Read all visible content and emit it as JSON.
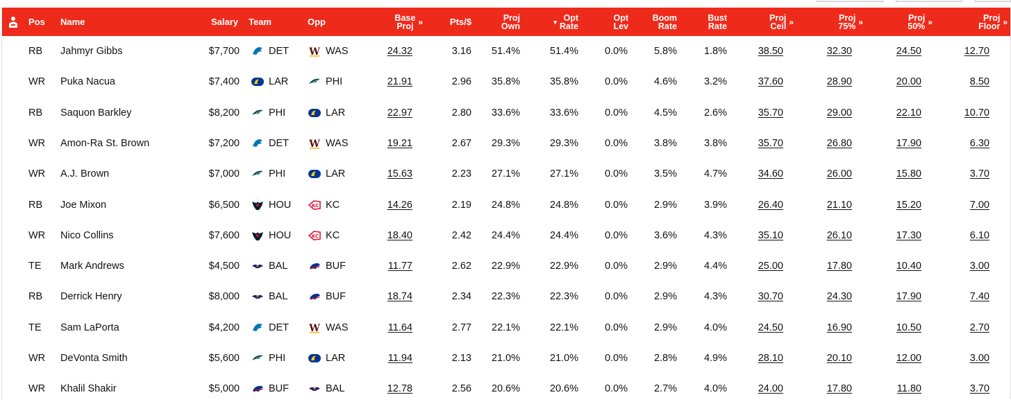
{
  "header": {
    "columns": [
      {
        "key": "pos",
        "label": "Pos"
      },
      {
        "key": "name",
        "label": "Name"
      },
      {
        "key": "salary",
        "label": "Salary"
      },
      {
        "key": "team",
        "label": "Team"
      },
      {
        "key": "opp",
        "label": "Opp"
      },
      {
        "key": "base_proj",
        "label": "Base Proj"
      },
      {
        "key": "pts_per_dollar",
        "label": "Pts/$"
      },
      {
        "key": "proj_own",
        "label": "Proj Own"
      },
      {
        "key": "opt_rate",
        "label": "Opt Rate"
      },
      {
        "key": "opt_lev",
        "label": "Opt Lev"
      },
      {
        "key": "boom_rate",
        "label": "Boom Rate"
      },
      {
        "key": "bust_rate",
        "label": "Bust Rate"
      },
      {
        "key": "proj_ceil",
        "label": "Proj Ceil"
      },
      {
        "key": "proj_75",
        "label": "Proj 75%"
      },
      {
        "key": "proj_50",
        "label": "Proj 50%"
      },
      {
        "key": "proj_floor",
        "label": "Proj Floor"
      }
    ],
    "base_proj_l1": "Base",
    "base_proj_l2": "Proj",
    "proj_own_l1": "Proj",
    "proj_own_l2": "Own",
    "opt_rate_l1": "Opt",
    "opt_rate_l2": "Rate",
    "opt_lev_l1": "Opt",
    "opt_lev_l2": "Lev",
    "boom_l1": "Boom",
    "boom_l2": "Rate",
    "bust_l1": "Bust",
    "bust_l2": "Rate",
    "ceil_l1": "Proj",
    "ceil_l2": "Ceil",
    "p75_l1": "Proj",
    "p75_l2": "75%",
    "p50_l1": "Proj",
    "p50_l2": "50%",
    "floor_l1": "Proj",
    "floor_l2": "Floor",
    "pos": "Pos",
    "name": "Name",
    "salary": "Salary",
    "team": "Team",
    "opp": "Opp",
    "pts": "Pts/$",
    "expand_glyph": "»",
    "sort_glyph": "▾"
  },
  "colors": {
    "header_bg": "#ee2b1b",
    "header_text": "#ffffff",
    "row_border": "#e6e6e6"
  },
  "team_colors": {
    "DET": {
      "primary": "#0076b6",
      "secondary": "#b0b7bc",
      "icon": "lion-icon"
    },
    "WAS": {
      "primary": "#5a1414",
      "secondary": "#ffb612",
      "icon": "w-logo-icon"
    },
    "LAR": {
      "primary": "#003594",
      "secondary": "#ffd100",
      "icon": "ram-horn-icon"
    },
    "PHI": {
      "primary": "#004c54",
      "secondary": "#a5acaf",
      "icon": "eagle-icon"
    },
    "HOU": {
      "primary": "#03202f",
      "secondary": "#a71930",
      "icon": "bull-icon"
    },
    "KC": {
      "primary": "#e31837",
      "secondary": "#ffb81c",
      "icon": "arrowhead-icon"
    },
    "BAL": {
      "primary": "#241773",
      "secondary": "#9e7c0c",
      "icon": "raven-icon"
    },
    "BUF": {
      "primary": "#00338d",
      "secondary": "#c60c30",
      "icon": "buffalo-icon"
    }
  },
  "rows": [
    {
      "pos": "RB",
      "name": "Jahmyr Gibbs",
      "salary": "$7,700",
      "team": "DET",
      "opp": "WAS",
      "base_proj": "24.32",
      "pts": "3.16",
      "proj_own": "51.4%",
      "opt_rate": "51.4%",
      "opt_lev": "0.0%",
      "boom": "5.8%",
      "bust": "1.8%",
      "ceil": "38.50",
      "p75": "32.30",
      "p50": "24.50",
      "floor": "12.70"
    },
    {
      "pos": "WR",
      "name": "Puka Nacua",
      "salary": "$7,400",
      "team": "LAR",
      "opp": "PHI",
      "base_proj": "21.91",
      "pts": "2.96",
      "proj_own": "35.8%",
      "opt_rate": "35.8%",
      "opt_lev": "0.0%",
      "boom": "4.6%",
      "bust": "3.2%",
      "ceil": "37.60",
      "p75": "28.90",
      "p50": "20.00",
      "floor": "8.50"
    },
    {
      "pos": "RB",
      "name": "Saquon Barkley",
      "salary": "$8,200",
      "team": "PHI",
      "opp": "LAR",
      "base_proj": "22.97",
      "pts": "2.80",
      "proj_own": "33.6%",
      "opt_rate": "33.6%",
      "opt_lev": "0.0%",
      "boom": "4.5%",
      "bust": "2.6%",
      "ceil": "35.70",
      "p75": "29.00",
      "p50": "22.10",
      "floor": "10.70"
    },
    {
      "pos": "WR",
      "name": "Amon-Ra St. Brown",
      "salary": "$7,200",
      "team": "DET",
      "opp": "WAS",
      "base_proj": "19.21",
      "pts": "2.67",
      "proj_own": "29.3%",
      "opt_rate": "29.3%",
      "opt_lev": "0.0%",
      "boom": "3.8%",
      "bust": "3.8%",
      "ceil": "35.70",
      "p75": "26.80",
      "p50": "17.90",
      "floor": "6.30"
    },
    {
      "pos": "WR",
      "name": "A.J. Brown",
      "salary": "$7,000",
      "team": "PHI",
      "opp": "LAR",
      "base_proj": "15.63",
      "pts": "2.23",
      "proj_own": "27.1%",
      "opt_rate": "27.1%",
      "opt_lev": "0.0%",
      "boom": "3.5%",
      "bust": "4.7%",
      "ceil": "34.60",
      "p75": "26.00",
      "p50": "15.80",
      "floor": "3.70"
    },
    {
      "pos": "RB",
      "name": "Joe Mixon",
      "salary": "$6,500",
      "team": "HOU",
      "opp": "KC",
      "base_proj": "14.26",
      "pts": "2.19",
      "proj_own": "24.8%",
      "opt_rate": "24.8%",
      "opt_lev": "0.0%",
      "boom": "2.9%",
      "bust": "3.9%",
      "ceil": "26.40",
      "p75": "21.10",
      "p50": "15.20",
      "floor": "7.00"
    },
    {
      "pos": "WR",
      "name": "Nico Collins",
      "salary": "$7,600",
      "team": "HOU",
      "opp": "KC",
      "base_proj": "18.40",
      "pts": "2.42",
      "proj_own": "24.4%",
      "opt_rate": "24.4%",
      "opt_lev": "0.0%",
      "boom": "3.6%",
      "bust": "4.3%",
      "ceil": "35.10",
      "p75": "26.10",
      "p50": "17.30",
      "floor": "6.10"
    },
    {
      "pos": "TE",
      "name": "Mark Andrews",
      "salary": "$4,500",
      "team": "BAL",
      "opp": "BUF",
      "base_proj": "11.77",
      "pts": "2.62",
      "proj_own": "22.9%",
      "opt_rate": "22.9%",
      "opt_lev": "0.0%",
      "boom": "2.9%",
      "bust": "4.4%",
      "ceil": "25.00",
      "p75": "17.80",
      "p50": "10.40",
      "floor": "3.00"
    },
    {
      "pos": "RB",
      "name": "Derrick Henry",
      "salary": "$8,000",
      "team": "BAL",
      "opp": "BUF",
      "base_proj": "18.74",
      "pts": "2.34",
      "proj_own": "22.3%",
      "opt_rate": "22.3%",
      "opt_lev": "0.0%",
      "boom": "2.9%",
      "bust": "4.3%",
      "ceil": "30.70",
      "p75": "24.30",
      "p50": "17.90",
      "floor": "7.40"
    },
    {
      "pos": "TE",
      "name": "Sam LaPorta",
      "salary": "$4,200",
      "team": "DET",
      "opp": "WAS",
      "base_proj": "11.64",
      "pts": "2.77",
      "proj_own": "22.1%",
      "opt_rate": "22.1%",
      "opt_lev": "0.0%",
      "boom": "2.9%",
      "bust": "4.0%",
      "ceil": "24.50",
      "p75": "16.90",
      "p50": "10.50",
      "floor": "2.70"
    },
    {
      "pos": "WR",
      "name": "DeVonta Smith",
      "salary": "$5,600",
      "team": "PHI",
      "opp": "LAR",
      "base_proj": "11.94",
      "pts": "2.13",
      "proj_own": "21.0%",
      "opt_rate": "21.0%",
      "opt_lev": "0.0%",
      "boom": "2.8%",
      "bust": "4.9%",
      "ceil": "28.10",
      "p75": "20.10",
      "p50": "12.00",
      "floor": "3.00"
    },
    {
      "pos": "WR",
      "name": "Khalil Shakir",
      "salary": "$5,000",
      "team": "BUF",
      "opp": "BAL",
      "base_proj": "12.78",
      "pts": "2.56",
      "proj_own": "20.6%",
      "opt_rate": "20.6%",
      "opt_lev": "0.0%",
      "boom": "2.7%",
      "bust": "4.0%",
      "ceil": "24.00",
      "p75": "17.80",
      "p50": "11.80",
      "floor": "3.70"
    }
  ]
}
